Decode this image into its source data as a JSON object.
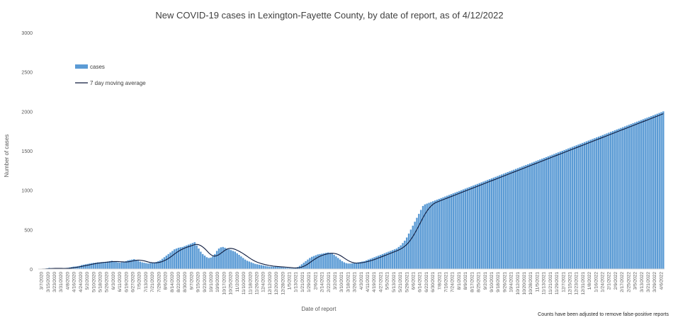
{
  "chart_data": {
    "type": "bar",
    "title": "New COVID-19 cases in Lexington-Fayette County, by date of report, as of 4/12/2022",
    "xlabel": "Date of report",
    "ylabel": "Number of cases",
    "ylim": [
      0,
      3000
    ],
    "yticks": [
      0,
      500,
      1000,
      1500,
      2000,
      2500,
      3000
    ],
    "grid": false,
    "legend_position": "top-left",
    "note": "Counts have been adjusted to remove false-positive reports",
    "bar_color": "#5b9bd5",
    "line_color": "#0d1b3e",
    "x_tick_labels": [
      "3/7/2020",
      "3/15/2020",
      "3/23/2020",
      "3/31/2020",
      "4/8/2020",
      "4/16/2020",
      "4/24/2020",
      "5/2/2020",
      "5/10/2020",
      "5/18/2020",
      "5/26/2020",
      "6/3/2020",
      "6/11/2020",
      "6/19/2020",
      "6/27/2020",
      "7/5/2020",
      "7/13/2020",
      "7/21/2020",
      "7/29/2020",
      "8/6/2020",
      "8/14/2020",
      "8/22/2020",
      "8/30/2020",
      "9/7/2020",
      "9/15/2020",
      "9/23/2020",
      "10/1/2020",
      "10/9/2020",
      "10/17/2020",
      "10/25/2020",
      "11/2/2020",
      "11/10/2020",
      "11/18/2020",
      "11/26/2020",
      "12/4/2020",
      "12/12/2020",
      "12/20/2020",
      "12/28/2020",
      "1/5/2021",
      "1/13/2021",
      "1/21/2021",
      "1/29/2021",
      "2/6/2021",
      "2/14/2021",
      "2/22/2021",
      "3/2/2021",
      "3/10/2021",
      "3/18/2021",
      "3/26/2021",
      "4/3/2021",
      "4/11/2021",
      "4/19/2021",
      "4/27/2021",
      "5/5/2021",
      "5/13/2021",
      "5/21/2021",
      "5/29/2021",
      "6/6/2021",
      "6/14/2021",
      "6/22/2021",
      "6/30/2021",
      "7/8/2021",
      "7/16/2021",
      "7/24/2021",
      "8/1/2021",
      "8/9/2021",
      "8/17/2021",
      "8/25/2021",
      "9/2/2021",
      "9/10/2021",
      "9/18/2021",
      "9/26/2021",
      "10/4/2021",
      "10/12/2021",
      "10/20/2021",
      "10/28/2021",
      "11/5/2021",
      "11/13/2021",
      "11/21/2021",
      "11/29/2021",
      "12/7/2021",
      "12/15/2021",
      "12/23/2021",
      "12/31/2021",
      "1/8/2022",
      "1/16/2022",
      "1/24/2022",
      "2/1/2022",
      "2/9/2022",
      "2/17/2022",
      "2/25/2022",
      "3/5/2022",
      "3/13/2022",
      "3/21/2022",
      "3/29/2022",
      "4/6/2022"
    ],
    "series": [
      {
        "name": "cases",
        "values": [
          0,
          0,
          2,
          5,
          10,
          15,
          10,
          8,
          10,
          5,
          5,
          5,
          8,
          12,
          15,
          20,
          25,
          30,
          32,
          35,
          40,
          50,
          55,
          60,
          65,
          70,
          75,
          78,
          80,
          85,
          85,
          88,
          90,
          92,
          95,
          100,
          105,
          95,
          90,
          85,
          80,
          85,
          90,
          100,
          110,
          115,
          120,
          125,
          115,
          105,
          95,
          85,
          80,
          75,
          70,
          75,
          80,
          85,
          90,
          100,
          110,
          130,
          150,
          170,
          190,
          210,
          230,
          250,
          260,
          270,
          275,
          280,
          290,
          300,
          310,
          320,
          330,
          340,
          300,
          260,
          220,
          190,
          170,
          150,
          140,
          145,
          160,
          190,
          230,
          260,
          275,
          280,
          270,
          260,
          250,
          240,
          230,
          220,
          200,
          180,
          160,
          140,
          120,
          105,
          95,
          85,
          75,
          65,
          60,
          55,
          50,
          45,
          40,
          35,
          30,
          30,
          30,
          30,
          28,
          25,
          22,
          20,
          18,
          15,
          12,
          10,
          10,
          15,
          25,
          40,
          60,
          80,
          100,
          120,
          140,
          155,
          165,
          175,
          185,
          190,
          195,
          200,
          205,
          210,
          205,
          195,
          180,
          160,
          140,
          120,
          100,
          85,
          75,
          70,
          70,
          72,
          75,
          80,
          85,
          90,
          95,
          100,
          110,
          120,
          130,
          140,
          150,
          160,
          170,
          180,
          190,
          200,
          210,
          220,
          230,
          240,
          250,
          260,
          280,
          300,
          330,
          360,
          400,
          450,
          500,
          550,
          600,
          650,
          700,
          750,
          800,
          820,
          830,
          840,
          850,
          860,
          870,
          880,
          890,
          900,
          910,
          920,
          930,
          940,
          950,
          960,
          970,
          980,
          990,
          1000,
          1010,
          1020,
          1030,
          1040,
          1050,
          1060,
          1070,
          1080,
          1090,
          1100,
          1110,
          1120,
          1130,
          1140,
          1150,
          1160,
          1170,
          1180,
          1190,
          1200,
          1210,
          1220,
          1230,
          1240,
          1250,
          1260,
          1270,
          1280,
          1290,
          1300,
          1310,
          1320,
          1330,
          1340,
          1350,
          1360,
          1370,
          1380,
          1390,
          1400,
          1410,
          1420,
          1430,
          1440,
          1450,
          1460,
          1470,
          1480,
          1490,
          1500,
          1510,
          1520,
          1530,
          1540,
          1550,
          1560,
          1570,
          1580,
          1590,
          1600,
          1610,
          1620,
          1630,
          1640,
          1650,
          1660,
          1670,
          1680,
          1690,
          1700,
          1710,
          1720,
          1730,
          1740,
          1750,
          1760,
          1770,
          1780,
          1790,
          1800,
          1810,
          1820,
          1830,
          1840,
          1850,
          1860,
          1870,
          1880,
          1890,
          1900,
          1910,
          1920,
          1930,
          1940,
          1950,
          1960,
          1970,
          1980,
          1990,
          2000
        ]
      },
      {
        "name": "7 day moving average",
        "values": []
      }
    ]
  }
}
